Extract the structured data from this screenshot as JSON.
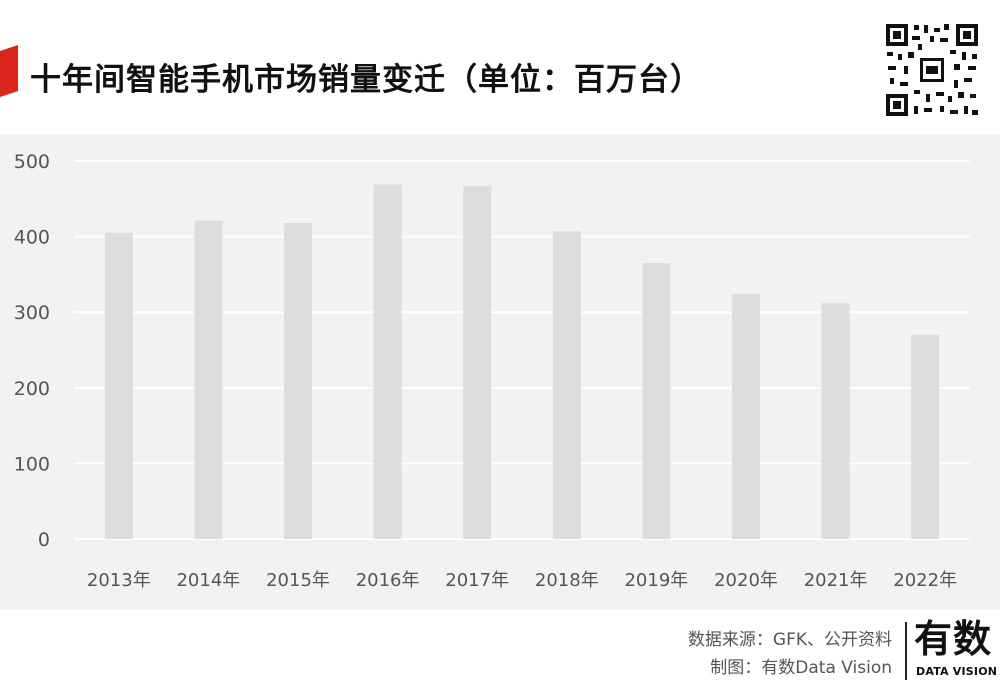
{
  "header": {
    "title": "十年间智能手机市场销量变迁（单位：百万台）"
  },
  "colors": {
    "accent": "#d9251d",
    "bar": "#dddddd",
    "panel_bg": "#f2f2f2",
    "grid": "#ffffff",
    "axis_text": "#555555"
  },
  "chart_data": {
    "type": "bar",
    "categories": [
      "2013年",
      "2014年",
      "2015年",
      "2016年",
      "2017年",
      "2018年",
      "2019年",
      "2020年",
      "2021年",
      "2022年"
    ],
    "values": [
      405,
      421,
      418,
      469,
      467,
      407,
      365,
      324,
      312,
      270
    ],
    "yticks": [
      0,
      100,
      200,
      300,
      400,
      500
    ],
    "ylim": [
      0,
      500
    ],
    "grid": true,
    "legend": "none"
  },
  "footer": {
    "source": "数据来源：GFK、公开资料",
    "maker": "制图：有数Data Vision",
    "logo_cn": "有数",
    "logo_en": "DATA VISION"
  },
  "icons": {
    "red_mark": "red-parallelogram-icon",
    "qr": "qr-code-icon"
  }
}
